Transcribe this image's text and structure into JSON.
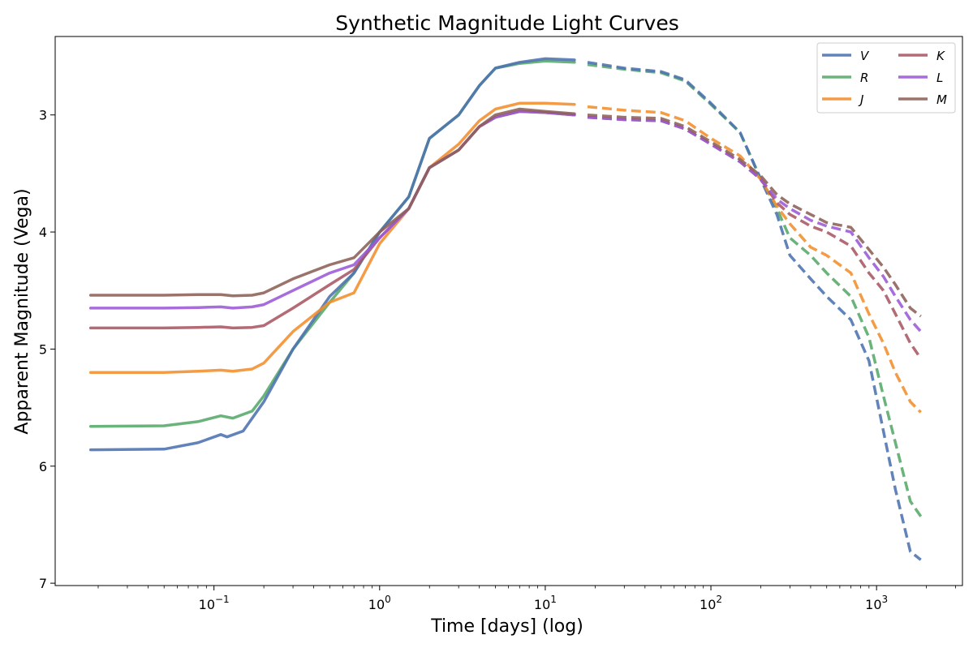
{
  "chart_data": {
    "type": "line",
    "title": "Synthetic Magnitude Light Curves",
    "xlabel": "Time [days] (log)",
    "ylabel": "Apparent Magnitude (Vega)",
    "xscale": "log",
    "xlim": [
      0.011,
      3300
    ],
    "ylim": [
      7.02,
      2.33
    ],
    "y_inverted": true,
    "x_ticks": [
      {
        "value": 0.1,
        "base": "10",
        "exp": "−1"
      },
      {
        "value": 1,
        "base": "10",
        "exp": "0"
      },
      {
        "value": 10,
        "base": "10",
        "exp": "1"
      },
      {
        "value": 100,
        "base": "10",
        "exp": "2"
      },
      {
        "value": 1000,
        "base": "10",
        "exp": "3"
      }
    ],
    "y_ticks": [
      {
        "value": 3,
        "label": "3"
      },
      {
        "value": 4,
        "label": "4"
      },
      {
        "value": 5,
        "label": "5"
      },
      {
        "value": 6,
        "label": "6"
      },
      {
        "value": 7,
        "label": "7"
      }
    ],
    "legend": {
      "placement": "top-right",
      "columns": 2
    },
    "segment_note": "solid for t <= 15 days, dashed for t > 18 days",
    "series": [
      {
        "name": "V",
        "color": "#4c72b0",
        "z": 2,
        "solid": [
          [
            0.018,
            5.86
          ],
          [
            0.05,
            5.855
          ],
          [
            0.08,
            5.8
          ],
          [
            0.11,
            5.73
          ],
          [
            0.12,
            5.75
          ],
          [
            0.15,
            5.7
          ],
          [
            0.2,
            5.45
          ],
          [
            0.3,
            5.0
          ],
          [
            0.5,
            4.55
          ],
          [
            0.7,
            4.35
          ],
          [
            1.0,
            4.0
          ],
          [
            1.5,
            3.7
          ],
          [
            2.0,
            3.2
          ],
          [
            3.0,
            3.0
          ],
          [
            4.0,
            2.75
          ],
          [
            5.0,
            2.6
          ],
          [
            7.0,
            2.55
          ],
          [
            10.0,
            2.52
          ],
          [
            15.0,
            2.53
          ]
        ],
        "dashed": [
          [
            18,
            2.55
          ],
          [
            30,
            2.6
          ],
          [
            50,
            2.63
          ],
          [
            70,
            2.7
          ],
          [
            100,
            2.9
          ],
          [
            150,
            3.15
          ],
          [
            200,
            3.55
          ],
          [
            250,
            3.85
          ],
          [
            300,
            4.2
          ],
          [
            400,
            4.4
          ],
          [
            500,
            4.55
          ],
          [
            700,
            4.75
          ],
          [
            900,
            5.1
          ],
          [
            1100,
            5.7
          ],
          [
            1300,
            6.2
          ],
          [
            1600,
            6.73
          ],
          [
            1850,
            6.8
          ]
        ]
      },
      {
        "name": "R",
        "color": "#55a868",
        "z": 1,
        "solid": [
          [
            0.018,
            5.66
          ],
          [
            0.05,
            5.655
          ],
          [
            0.08,
            5.62
          ],
          [
            0.11,
            5.57
          ],
          [
            0.13,
            5.59
          ],
          [
            0.17,
            5.53
          ],
          [
            0.2,
            5.4
          ],
          [
            0.3,
            5.0
          ],
          [
            0.5,
            4.6
          ],
          [
            0.7,
            4.35
          ],
          [
            1.0,
            4.0
          ],
          [
            1.5,
            3.7
          ],
          [
            2.0,
            3.2
          ],
          [
            3.0,
            3.0
          ],
          [
            4.0,
            2.75
          ],
          [
            5.0,
            2.6
          ],
          [
            7.0,
            2.56
          ],
          [
            10.0,
            2.54
          ],
          [
            15.0,
            2.55
          ]
        ],
        "dashed": [
          [
            18,
            2.57
          ],
          [
            30,
            2.61
          ],
          [
            50,
            2.64
          ],
          [
            70,
            2.71
          ],
          [
            100,
            2.91
          ],
          [
            150,
            3.15
          ],
          [
            200,
            3.55
          ],
          [
            250,
            3.8
          ],
          [
            300,
            4.05
          ],
          [
            400,
            4.2
          ],
          [
            500,
            4.35
          ],
          [
            700,
            4.55
          ],
          [
            900,
            4.9
          ],
          [
            1100,
            5.4
          ],
          [
            1300,
            5.8
          ],
          [
            1600,
            6.3
          ],
          [
            1850,
            6.43
          ]
        ]
      },
      {
        "name": "J",
        "color": "#f28e2b",
        "z": 3,
        "solid": [
          [
            0.018,
            5.2
          ],
          [
            0.05,
            5.2
          ],
          [
            0.08,
            5.19
          ],
          [
            0.11,
            5.18
          ],
          [
            0.13,
            5.19
          ],
          [
            0.17,
            5.17
          ],
          [
            0.2,
            5.12
          ],
          [
            0.3,
            4.85
          ],
          [
            0.5,
            4.6
          ],
          [
            0.7,
            4.52
          ],
          [
            1.0,
            4.1
          ],
          [
            1.5,
            3.8
          ],
          [
            2.0,
            3.45
          ],
          [
            3.0,
            3.25
          ],
          [
            4.0,
            3.05
          ],
          [
            5.0,
            2.95
          ],
          [
            7.0,
            2.9
          ],
          [
            10.0,
            2.9
          ],
          [
            15.0,
            2.91
          ]
        ],
        "dashed": [
          [
            18,
            2.93
          ],
          [
            30,
            2.96
          ],
          [
            50,
            2.98
          ],
          [
            70,
            3.05
          ],
          [
            100,
            3.2
          ],
          [
            150,
            3.35
          ],
          [
            200,
            3.55
          ],
          [
            250,
            3.78
          ],
          [
            300,
            3.93
          ],
          [
            400,
            4.13
          ],
          [
            500,
            4.2
          ],
          [
            700,
            4.35
          ],
          [
            900,
            4.7
          ],
          [
            1100,
            4.95
          ],
          [
            1300,
            5.2
          ],
          [
            1600,
            5.45
          ],
          [
            1850,
            5.54
          ]
        ]
      },
      {
        "name": "K",
        "color": "#a85662",
        "z": 4,
        "solid": [
          [
            0.018,
            4.82
          ],
          [
            0.05,
            4.82
          ],
          [
            0.08,
            4.815
          ],
          [
            0.11,
            4.81
          ],
          [
            0.13,
            4.82
          ],
          [
            0.17,
            4.815
          ],
          [
            0.2,
            4.8
          ],
          [
            0.3,
            4.65
          ],
          [
            0.5,
            4.45
          ],
          [
            0.7,
            4.32
          ],
          [
            1.0,
            4.05
          ],
          [
            1.5,
            3.8
          ],
          [
            2.0,
            3.45
          ],
          [
            3.0,
            3.3
          ],
          [
            4.0,
            3.1
          ],
          [
            5.0,
            3.02
          ],
          [
            7.0,
            2.97
          ],
          [
            10.0,
            2.98
          ],
          [
            15.0,
            3.0
          ]
        ],
        "dashed": [
          [
            18,
            3.02
          ],
          [
            30,
            3.04
          ],
          [
            50,
            3.05
          ],
          [
            70,
            3.12
          ],
          [
            100,
            3.25
          ],
          [
            150,
            3.4
          ],
          [
            200,
            3.55
          ],
          [
            250,
            3.75
          ],
          [
            300,
            3.85
          ],
          [
            400,
            3.95
          ],
          [
            500,
            4.0
          ],
          [
            700,
            4.12
          ],
          [
            900,
            4.35
          ],
          [
            1100,
            4.5
          ],
          [
            1300,
            4.7
          ],
          [
            1600,
            4.95
          ],
          [
            1850,
            5.08
          ]
        ]
      },
      {
        "name": "L",
        "color": "#9b59d6",
        "z": 5,
        "solid": [
          [
            0.018,
            4.65
          ],
          [
            0.05,
            4.65
          ],
          [
            0.08,
            4.645
          ],
          [
            0.11,
            4.64
          ],
          [
            0.13,
            4.65
          ],
          [
            0.17,
            4.64
          ],
          [
            0.2,
            4.62
          ],
          [
            0.3,
            4.5
          ],
          [
            0.5,
            4.35
          ],
          [
            0.7,
            4.28
          ],
          [
            1.0,
            4.05
          ],
          [
            1.5,
            3.8
          ],
          [
            2.0,
            3.45
          ],
          [
            3.0,
            3.3
          ],
          [
            4.0,
            3.1
          ],
          [
            5.0,
            3.02
          ],
          [
            7.0,
            2.97
          ],
          [
            10.0,
            2.98
          ],
          [
            15.0,
            3.0
          ]
        ],
        "dashed": [
          [
            18,
            3.02
          ],
          [
            30,
            3.04
          ],
          [
            50,
            3.05
          ],
          [
            70,
            3.12
          ],
          [
            100,
            3.25
          ],
          [
            150,
            3.4
          ],
          [
            200,
            3.55
          ],
          [
            250,
            3.72
          ],
          [
            300,
            3.8
          ],
          [
            400,
            3.9
          ],
          [
            500,
            3.95
          ],
          [
            700,
            4.0
          ],
          [
            900,
            4.22
          ],
          [
            1100,
            4.38
          ],
          [
            1300,
            4.55
          ],
          [
            1600,
            4.75
          ],
          [
            1850,
            4.85
          ]
        ]
      },
      {
        "name": "M",
        "color": "#8c6057",
        "z": 6,
        "solid": [
          [
            0.018,
            4.54
          ],
          [
            0.05,
            4.54
          ],
          [
            0.08,
            4.535
          ],
          [
            0.11,
            4.535
          ],
          [
            0.13,
            4.545
          ],
          [
            0.17,
            4.54
          ],
          [
            0.2,
            4.52
          ],
          [
            0.3,
            4.4
          ],
          [
            0.5,
            4.28
          ],
          [
            0.7,
            4.22
          ],
          [
            1.0,
            4.0
          ],
          [
            1.5,
            3.8
          ],
          [
            2.0,
            3.45
          ],
          [
            3.0,
            3.3
          ],
          [
            4.0,
            3.1
          ],
          [
            5.0,
            3.0
          ],
          [
            7.0,
            2.95
          ],
          [
            10.0,
            2.97
          ],
          [
            15.0,
            2.99
          ]
        ],
        "dashed": [
          [
            18,
            3.0
          ],
          [
            30,
            3.02
          ],
          [
            50,
            3.03
          ],
          [
            70,
            3.1
          ],
          [
            100,
            3.23
          ],
          [
            150,
            3.38
          ],
          [
            200,
            3.52
          ],
          [
            250,
            3.68
          ],
          [
            300,
            3.76
          ],
          [
            400,
            3.85
          ],
          [
            500,
            3.92
          ],
          [
            700,
            3.96
          ],
          [
            900,
            4.15
          ],
          [
            1100,
            4.3
          ],
          [
            1300,
            4.45
          ],
          [
            1600,
            4.65
          ],
          [
            1850,
            4.72
          ]
        ]
      }
    ]
  }
}
